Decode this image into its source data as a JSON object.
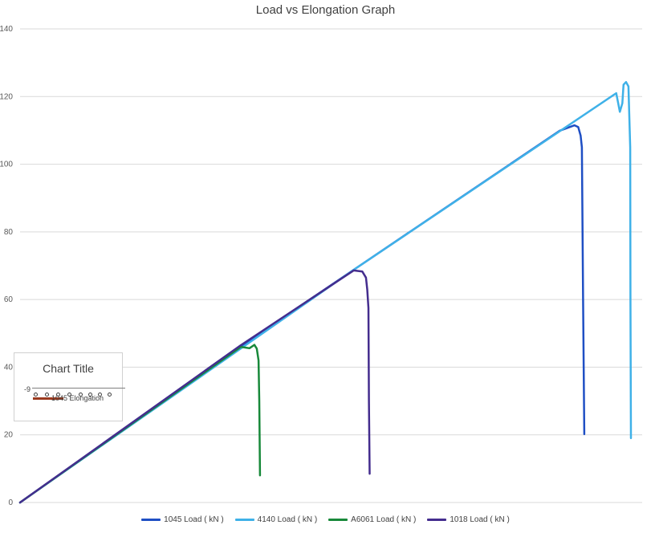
{
  "chart_data": {
    "type": "line",
    "title": "Load vs Elongation Graph",
    "xlabel": "",
    "ylabel": "",
    "ylim": [
      0,
      140
    ],
    "yticks": [
      0,
      20,
      40,
      60,
      80,
      100,
      120,
      140
    ],
    "grid": true,
    "legend_position": "bottom",
    "series": [
      {
        "name": "1045 Load ( kN )",
        "color": "#1f4fc4",
        "points": [
          [
            0,
            0
          ],
          [
            9.0,
            46.2
          ],
          [
            13.6,
            68.8
          ],
          [
            22.0,
            109.9
          ],
          [
            22.6,
            111.5
          ],
          [
            22.75,
            111.0
          ],
          [
            22.85,
            108.5
          ],
          [
            22.9,
            105.0
          ],
          [
            22.95,
            60.0
          ],
          [
            23.0,
            20.2
          ]
        ]
      },
      {
        "name": "4140 Load ( kN )",
        "color": "#3fb1e8",
        "points": [
          [
            0,
            0
          ],
          [
            13.6,
            68.8
          ],
          [
            24.3,
            121.0
          ],
          [
            24.45,
            115.5
          ],
          [
            24.55,
            118.0
          ],
          [
            24.6,
            123.5
          ],
          [
            24.7,
            124.3
          ],
          [
            24.8,
            123.0
          ],
          [
            24.87,
            105.0
          ],
          [
            24.88,
            60.0
          ],
          [
            24.9,
            19.0
          ]
        ]
      },
      {
        "name": "A6061 Load ( kN )",
        "color": "#18893a",
        "points": [
          [
            0,
            0
          ],
          [
            9.0,
            46.0
          ],
          [
            9.35,
            45.6
          ],
          [
            9.55,
            46.6
          ],
          [
            9.65,
            45.5
          ],
          [
            9.72,
            42.0
          ],
          [
            9.75,
            30.0
          ],
          [
            9.78,
            8.0
          ]
        ]
      },
      {
        "name": "1018 Load ( kN )",
        "color": "#442d8e",
        "points": [
          [
            0,
            0
          ],
          [
            9.0,
            46.5
          ],
          [
            13.6,
            68.6
          ],
          [
            13.95,
            68.3
          ],
          [
            14.1,
            66.5
          ],
          [
            14.15,
            63.0
          ],
          [
            14.2,
            57.5
          ],
          [
            14.22,
            30.0
          ],
          [
            14.25,
            8.5
          ]
        ]
      }
    ]
  },
  "mini_chart": {
    "title": "Chart Title",
    "axis_label": "-9",
    "legend_label": "1045 Elongation",
    "color": "#9b3a1f"
  }
}
